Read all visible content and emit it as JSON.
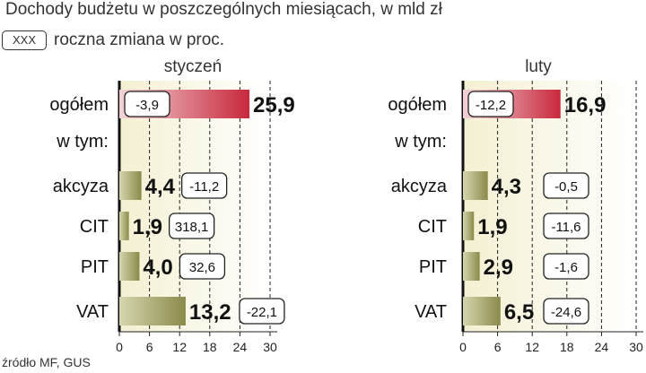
{
  "title": "Dochody budżetu w poszczególnych miesiącach, w mld zł",
  "legend": {
    "box_label": "XXX",
    "text": "roczna zmiana w proc."
  },
  "source": "źródło MF, GUS",
  "colors": {
    "total_bar": "#c8283c",
    "category_bar": "#8a8a4a",
    "panel_bg": "#f4f0d2"
  },
  "chart_data": [
    {
      "type": "bar",
      "title": "styczeń",
      "orientation": "horizontal",
      "categories": [
        "ogółem",
        "w tym:",
        "akcyza",
        "CIT",
        "PIT",
        "VAT"
      ],
      "values": [
        25.9,
        null,
        4.4,
        1.9,
        4.0,
        13.2
      ],
      "value_labels": [
        "25,9",
        "",
        "4,4",
        "1,9",
        "4,0",
        "13,2"
      ],
      "yoy_change": [
        "-3,9",
        "",
        "-11,2",
        "318,1",
        "32,6",
        "-22,1"
      ],
      "xlim": [
        0,
        30
      ],
      "xticks": [
        "0",
        "6",
        "12",
        "18",
        "24",
        "30"
      ]
    },
    {
      "type": "bar",
      "title": "luty",
      "orientation": "horizontal",
      "categories": [
        "ogółem",
        "w tym:",
        "akcyza",
        "CIT",
        "PIT",
        "VAT"
      ],
      "values": [
        16.9,
        null,
        4.3,
        1.9,
        2.9,
        6.5
      ],
      "value_labels": [
        "16,9",
        "",
        "4,3",
        "1,9",
        "2,9",
        "6,5"
      ],
      "yoy_change": [
        "-12,2",
        "",
        "-0,5",
        "-11,6",
        "-1,6",
        "-24,6"
      ],
      "xlim": [
        0,
        30
      ],
      "xticks": [
        "0",
        "6",
        "12",
        "18",
        "24",
        "30"
      ]
    }
  ]
}
